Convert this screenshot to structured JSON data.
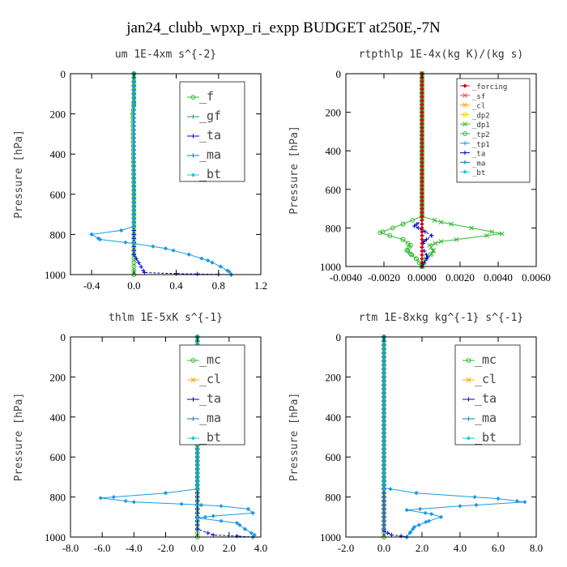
{
  "figure": {
    "title": "jan24_clubb_wpxp_ri_expp  BUDGET at250E,-7N"
  },
  "chart_data": [
    {
      "type": "line",
      "title": "um  1E-4xm s^{-2}",
      "ylabel": "Pressure [hPa]",
      "xlim": [
        -0.6,
        1.2
      ],
      "ylim": [
        1000,
        0
      ],
      "xticks": [
        "-0.4",
        "0.0",
        "0.4",
        "0.8",
        "1.2"
      ],
      "xtick_values": [
        -0.4,
        0.0,
        0.4,
        0.8,
        1.2
      ],
      "yticks": [
        "0",
        "200",
        "400",
        "600",
        "800",
        "1000"
      ],
      "legend": {
        "size": "large",
        "position": "top-right",
        "entries": [
          "_f",
          "_gf",
          "_ta",
          "_ma",
          "_bt"
        ]
      },
      "series": [
        {
          "name": "_f",
          "color": "#2dbb2d",
          "marker": "circle-open",
          "x": [
            0.0,
            0.0,
            -0.01,
            0.0,
            0.0,
            0.0
          ],
          "y": [
            0,
            150,
            200,
            600,
            800,
            1000
          ]
        },
        {
          "name": "_ta",
          "color": "#0000cc",
          "marker": "plus",
          "x": [
            0.0,
            0.0,
            0.1,
            0.4,
            0.6,
            0.8,
            0.92
          ],
          "y": [
            0,
            900,
            990,
            995,
            997,
            999,
            1000
          ]
        },
        {
          "name": "_bt",
          "color": "#1a9ae0",
          "marker": "diamond",
          "x": [
            0.0,
            0.0,
            0.0,
            -0.12,
            -0.4,
            -0.32,
            0.0,
            0.3,
            0.52,
            0.7,
            0.82,
            0.9,
            0.92
          ],
          "y": [
            0,
            700,
            760,
            780,
            800,
            825,
            845,
            870,
            900,
            930,
            960,
            985,
            1000
          ]
        }
      ]
    },
    {
      "type": "line",
      "title": "rtpthlp  1E-4x(kg K)/(kg s)",
      "ylabel": "Pressure [hPa]",
      "xlim": [
        -0.004,
        0.006
      ],
      "ylim": [
        1000,
        0
      ],
      "xticks": [
        "-0.0040",
        "-0.0020",
        "0.0000",
        "0.0020",
        "0.0040",
        "0.0060"
      ],
      "xtick_values": [
        -0.004,
        -0.002,
        0.0,
        0.002,
        0.004,
        0.006
      ],
      "yticks": [
        "0",
        "200",
        "400",
        "600",
        "800",
        "1000"
      ],
      "legend": {
        "size": "small",
        "position": "top-right",
        "entries": [
          "_forcing",
          "_sf",
          "_cl",
          "_dp2",
          "_dp1",
          "_tp2",
          "_tp1",
          "_ta",
          "_ma",
          "_bt"
        ]
      },
      "series": [
        {
          "name": "_dp1",
          "color": "#2dbb2d",
          "marker": "x",
          "x": [
            0.0,
            0.0,
            0.001,
            0.0042,
            0.001,
            0.0004,
            0.0006,
            0.0005,
            0.0002,
            0.0
          ],
          "y": [
            0,
            740,
            770,
            830,
            870,
            890,
            915,
            935,
            960,
            1000
          ]
        },
        {
          "name": "_tp2",
          "color": "#2dbb2d",
          "marker": "circle-open",
          "x": [
            0.0,
            0.0,
            -0.001,
            -0.0022,
            -0.001,
            -0.0006,
            -0.0008,
            -0.0006,
            -0.0003,
            0.0
          ],
          "y": [
            0,
            740,
            780,
            825,
            860,
            890,
            915,
            935,
            960,
            1000
          ]
        },
        {
          "name": "_ta",
          "color": "#0000cc",
          "marker": "plus",
          "x": [
            0.0,
            0.0,
            -0.0004,
            0.0,
            0.0005,
            0.0001,
            0.0,
            0.0003,
            0.0
          ],
          "y": [
            0,
            760,
            790,
            810,
            840,
            870,
            900,
            950,
            1000
          ]
        },
        {
          "name": "_forcing",
          "color": "#dd0000",
          "marker": "diamond",
          "x": [
            0.0,
            0.0
          ],
          "y": [
            0,
            1000
          ]
        }
      ]
    },
    {
      "type": "line",
      "title": "thlm  1E-5xK s^{-1}",
      "ylabel": "Pressure [hPa]",
      "xlim": [
        -8,
        4
      ],
      "ylim": [
        1000,
        0
      ],
      "xticks": [
        "-8.0",
        "-6.0",
        "-4.0",
        "-2.0",
        "0.0",
        "2.0",
        "4.0"
      ],
      "xtick_values": [
        -8,
        -6,
        -4,
        -2,
        0,
        2,
        4
      ],
      "yticks": [
        "0",
        "200",
        "400",
        "600",
        "800",
        "1000"
      ],
      "legend": {
        "size": "large",
        "position": "top-right",
        "entries": [
          "_mc",
          "_cl",
          "_ta",
          "_ma",
          "_bt"
        ]
      },
      "series": [
        {
          "name": "_mc",
          "color": "#2dbb2d",
          "marker": "circle-open",
          "x": [
            0.0,
            0.0
          ],
          "y": [
            0,
            1000
          ]
        },
        {
          "name": "_ta",
          "color": "#0000cc",
          "marker": "plus",
          "x": [
            0.0,
            0.0,
            1.0,
            2.5,
            3.5
          ],
          "y": [
            0,
            960,
            990,
            995,
            1000
          ]
        },
        {
          "name": "_bt",
          "color": "#1a9ae0",
          "marker": "diamond",
          "x": [
            0.0,
            0.0,
            -2.0,
            -6.1,
            -4.0,
            -1.0,
            1.5,
            3.2,
            3.5,
            1.0,
            0.0,
            2.5,
            3.0,
            3.6,
            3.5
          ],
          "y": [
            0,
            760,
            780,
            805,
            825,
            835,
            845,
            860,
            880,
            895,
            905,
            930,
            960,
            990,
            1000
          ]
        }
      ]
    },
    {
      "type": "line",
      "title": "rtm  1E-8xkg kg^{-1} s^{-1}",
      "ylabel": "Pressure [hPa]",
      "xlim": [
        -2,
        8
      ],
      "ylim": [
        1000,
        0
      ],
      "xticks": [
        "-2.0",
        "0.0",
        "2.0",
        "4.0",
        "6.0",
        "8.0"
      ],
      "xtick_values": [
        -2,
        0,
        2,
        4,
        6,
        8
      ],
      "yticks": [
        "0",
        "200",
        "400",
        "600",
        "800",
        "1000"
      ],
      "legend": {
        "size": "large",
        "position": "top-right",
        "entries": [
          "_mc",
          "_cl",
          "_ta",
          "_ma",
          "_bt"
        ]
      },
      "series": [
        {
          "name": "_mc",
          "color": "#2dbb2d",
          "marker": "circle-open",
          "x": [
            0.0,
            0.0
          ],
          "y": [
            0,
            1000
          ]
        },
        {
          "name": "_ta",
          "color": "#0000cc",
          "marker": "plus",
          "x": [
            0.0,
            0.0,
            0.4,
            0.9,
            1.2
          ],
          "y": [
            0,
            970,
            990,
            995,
            1000
          ]
        },
        {
          "name": "_bt",
          "color": "#1a9ae0",
          "marker": "diamond",
          "x": [
            0.0,
            0.0,
            1.7,
            6.0,
            7.4,
            4.0,
            1.2,
            2.5,
            3.0,
            2.2,
            1.6,
            1.4,
            1.2
          ],
          "y": [
            0,
            755,
            780,
            808,
            825,
            845,
            865,
            885,
            900,
            925,
            950,
            975,
            1000
          ]
        }
      ]
    }
  ]
}
